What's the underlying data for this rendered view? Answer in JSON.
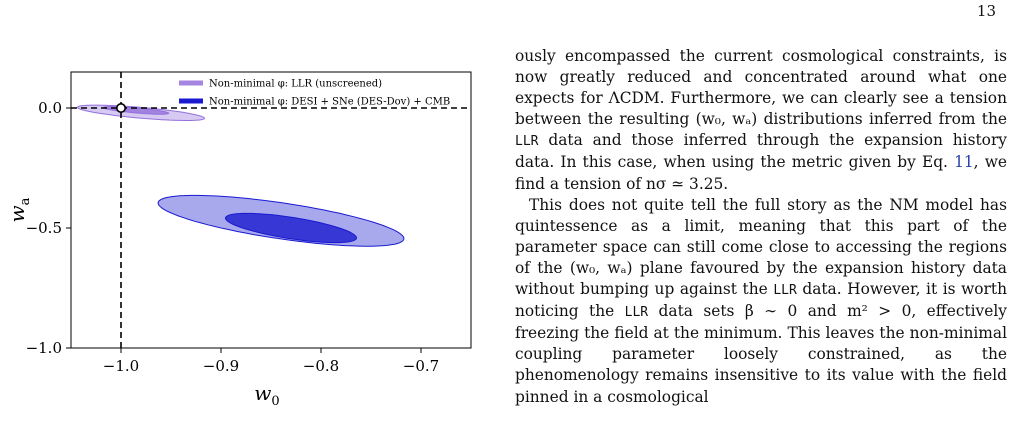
{
  "page": {
    "number": "13"
  },
  "chart_data": {
    "type": "contour",
    "xlabel": "w_0",
    "ylabel": "w_a",
    "xlim": [
      -1.05,
      -0.65
    ],
    "ylim": [
      -1.0,
      0.15
    ],
    "xticks": [
      -1.0,
      -0.9,
      -0.8,
      -0.7
    ],
    "xtick_labels": [
      "−1.0",
      "−0.9",
      "−0.8",
      "−0.7"
    ],
    "yticks": [
      0.0,
      -0.5,
      -1.0
    ],
    "ytick_labels": [
      "0.0",
      "−0.5",
      "−1.0"
    ],
    "reference_lines": {
      "w0": -1.0,
      "wa": 0.0
    },
    "reference_point": {
      "w0": -1.0,
      "wa": 0.0
    },
    "legend_position": "top-right",
    "series": [
      {
        "name": "Non-minimal φ: LLR (unscreened)",
        "color": "#9470dc",
        "contours": [
          {
            "level": "1sigma",
            "center": [
              -0.985,
              -0.01
            ],
            "semi_axes": [
              0.035,
              0.01
            ],
            "angle_deg": 22
          },
          {
            "level": "2sigma",
            "center": [
              -0.98,
              -0.02
            ],
            "semi_axes": [
              0.068,
              0.021
            ],
            "angle_deg": 22
          }
        ]
      },
      {
        "name": "Non-minimal φ: DESI + SNe (DES-Dov) + CMB",
        "color": "#1a1ad0",
        "contours": [
          {
            "level": "1sigma",
            "center": [
              -0.83,
              -0.5
            ],
            "semi_axes": [
              0.082,
              0.036
            ],
            "angle_deg": 42
          },
          {
            "level": "2sigma",
            "center": [
              -0.84,
              -0.47
            ],
            "semi_axes": [
              0.15,
              0.062
            ],
            "angle_deg": 39
          }
        ]
      }
    ]
  },
  "text": {
    "p1": "ously encompassed the current cosmological constraints, is now greatly reduced and concentrated around what one expects for ΛCDM. Furthermore, we can clearly see a tension between the resulting (w₀, wₐ) distributions inferred from the LLR data and those inferred through the expansion history data. In this case, when using the metric given by Eq. 11, we find a tension of nσ ≃ 3.25.",
    "p2": "This does not quite tell the full story as the NM model has quintessence as a limit, meaning that this part of the parameter space can still come close to accessing the regions of the (w₀, wₐ) plane favoured by the expansion history data without bumping up against the LLR data. However, it is worth noticing the LLR data sets β ∼ 0 and m² > 0, effectively freezing the field at the minimum. This leaves the non-minimal coupling parameter loosely constrained, as the phenomenology remains insensitive to its value with the field pinned in a cosmological"
  }
}
